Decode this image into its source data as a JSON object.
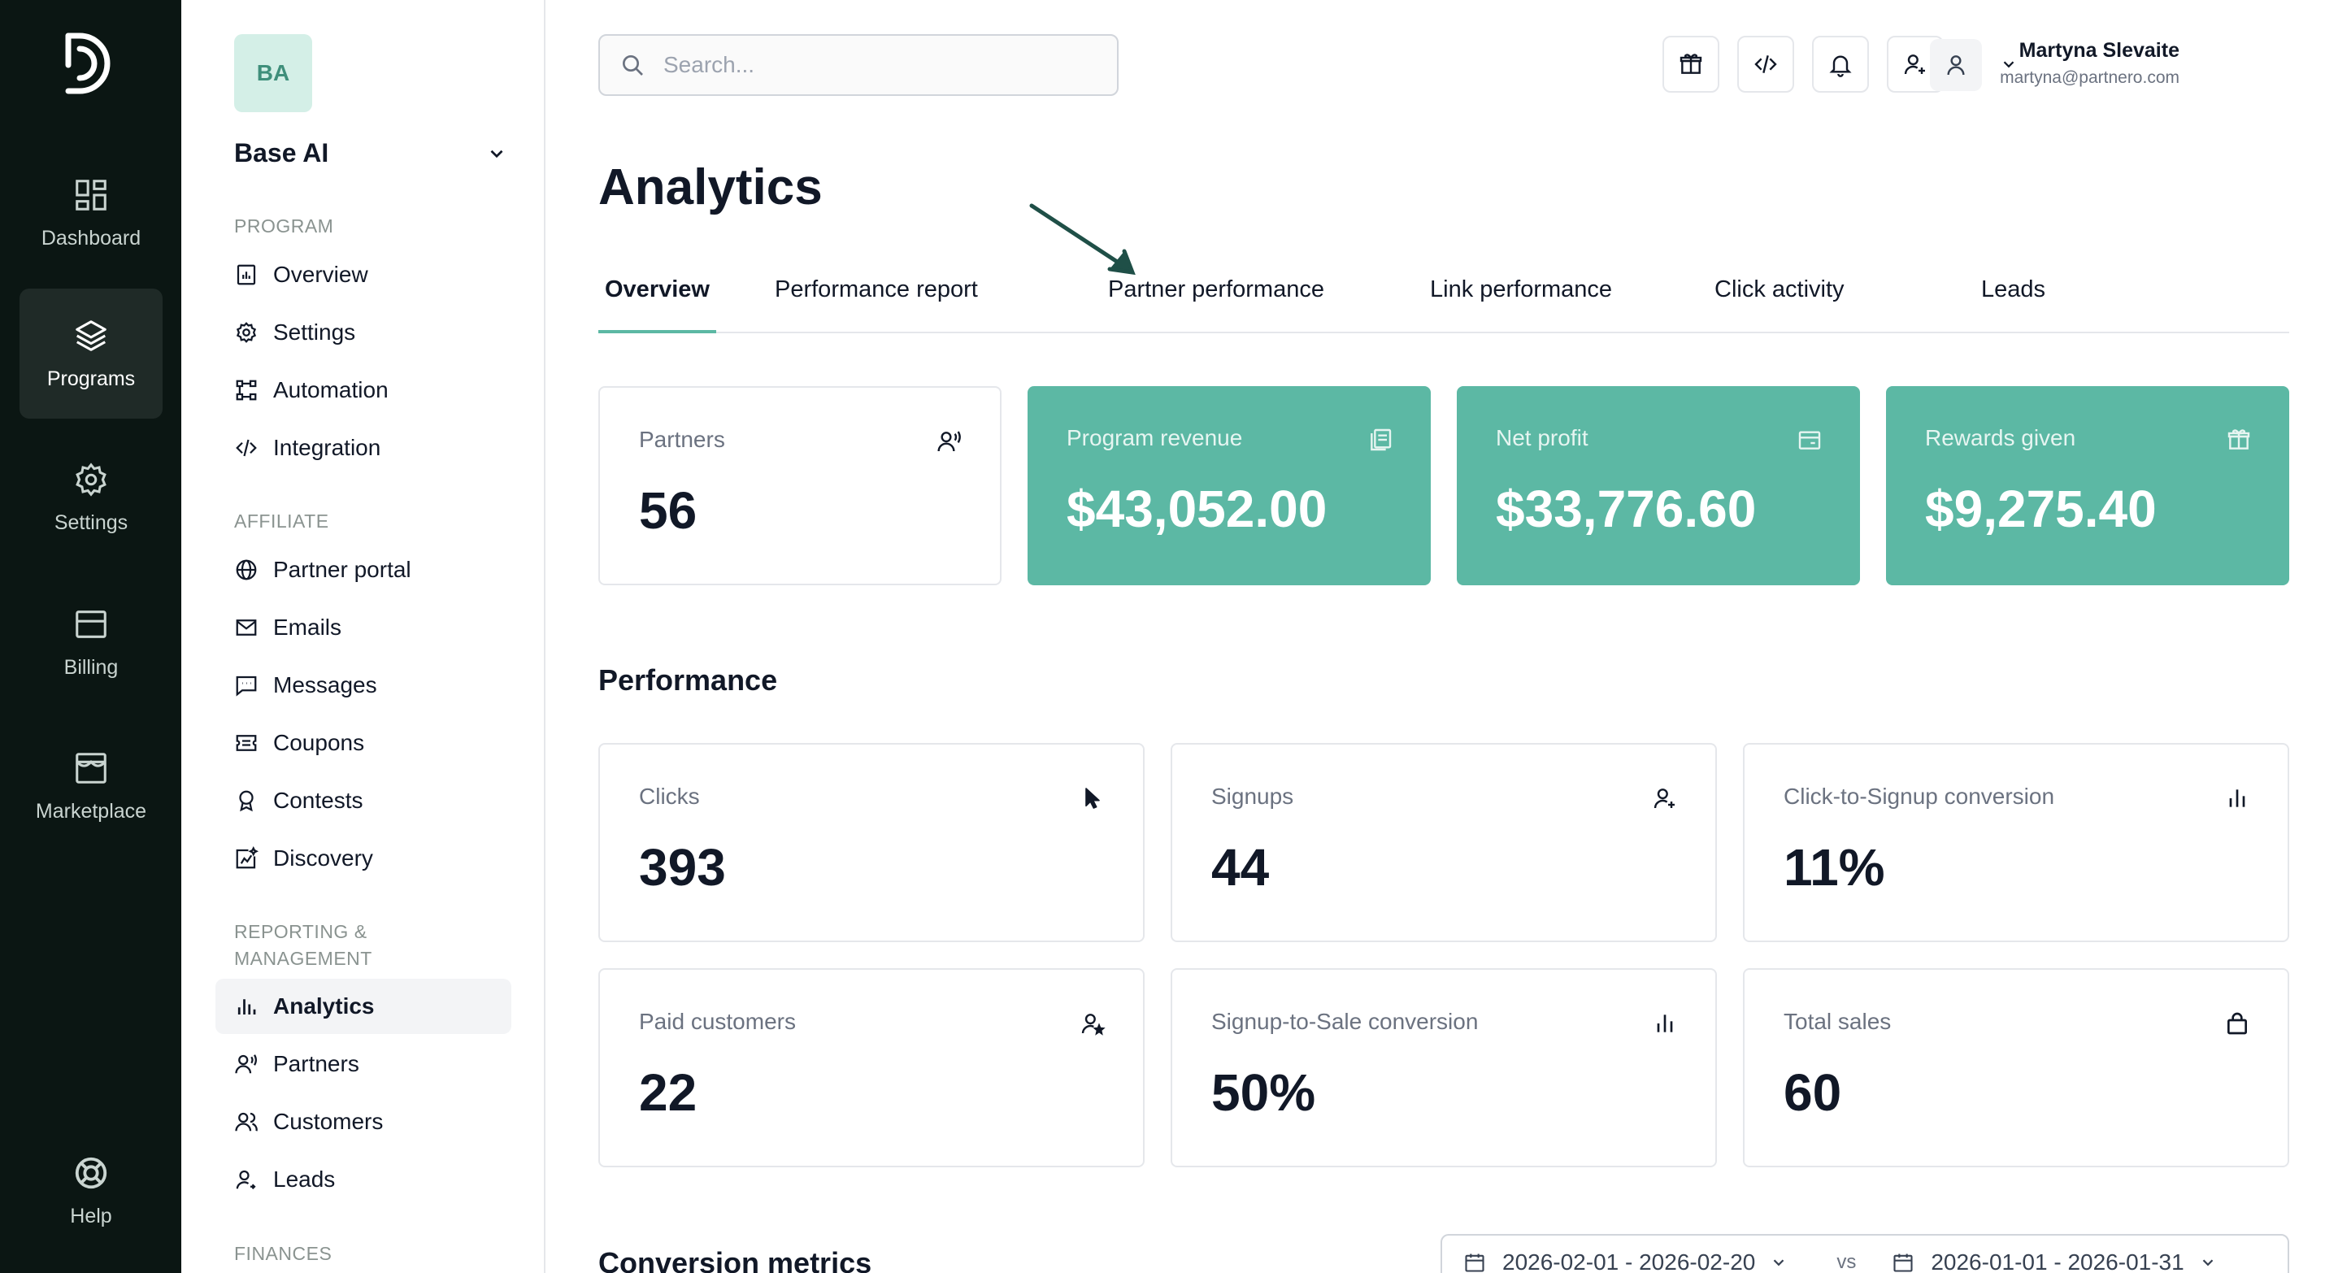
{
  "rail": {
    "items": [
      {
        "label": "Dashboard",
        "icon": "dashboard-icon"
      },
      {
        "label": "Programs",
        "icon": "layers-icon"
      },
      {
        "label": "Settings",
        "icon": "gear-icon"
      },
      {
        "label": "Billing",
        "icon": "billing-icon"
      },
      {
        "label": "Marketplace",
        "icon": "store-icon"
      }
    ],
    "help": "Help"
  },
  "workspace": {
    "initials": "BA",
    "name": "Base AI"
  },
  "sidebar": {
    "program_heading": "PROGRAM",
    "program_items": [
      "Overview",
      "Settings",
      "Automation",
      "Integration"
    ],
    "affiliate_heading": "AFFILIATE",
    "affiliate_items": [
      "Partner portal",
      "Emails",
      "Messages",
      "Coupons",
      "Contests",
      "Discovery"
    ],
    "reporting_heading_line1": "REPORTING &",
    "reporting_heading_line2": "MANAGEMENT",
    "reporting_items": [
      "Analytics",
      "Partners",
      "Customers",
      "Leads"
    ],
    "finances_heading": "FINANCES"
  },
  "search": {
    "placeholder": "Search..."
  },
  "user": {
    "name": "Martyna Slevaite",
    "email": "martyna@partnero.com"
  },
  "page_title": "Analytics",
  "tabs": [
    "Overview",
    "Performance report",
    "Partner performance",
    "Link performance",
    "Click activity",
    "Leads"
  ],
  "kpis": [
    {
      "label": "Partners",
      "value": "56"
    },
    {
      "label": "Program revenue",
      "value": "$43,052.00"
    },
    {
      "label": "Net profit",
      "value": "$33,776.60"
    },
    {
      "label": "Rewards given",
      "value": "$9,275.40"
    }
  ],
  "performance": {
    "title": "Performance",
    "cards": [
      {
        "label": "Clicks",
        "value": "393"
      },
      {
        "label": "Signups",
        "value": "44"
      },
      {
        "label": "Click-to-Signup conversion",
        "value": "11%"
      },
      {
        "label": "Paid customers",
        "value": "22"
      },
      {
        "label": "Signup-to-Sale conversion",
        "value": "50%"
      },
      {
        "label": "Total sales",
        "value": "60"
      }
    ]
  },
  "conversion": {
    "title": "Conversion metrics",
    "range_current": "2026-02-01 - 2026-02-20",
    "vs": "vs",
    "range_previous": "2026-01-01 - 2026-01-31"
  },
  "colors": {
    "accent": "#5cb8a4",
    "rail_bg": "#0b1613"
  }
}
